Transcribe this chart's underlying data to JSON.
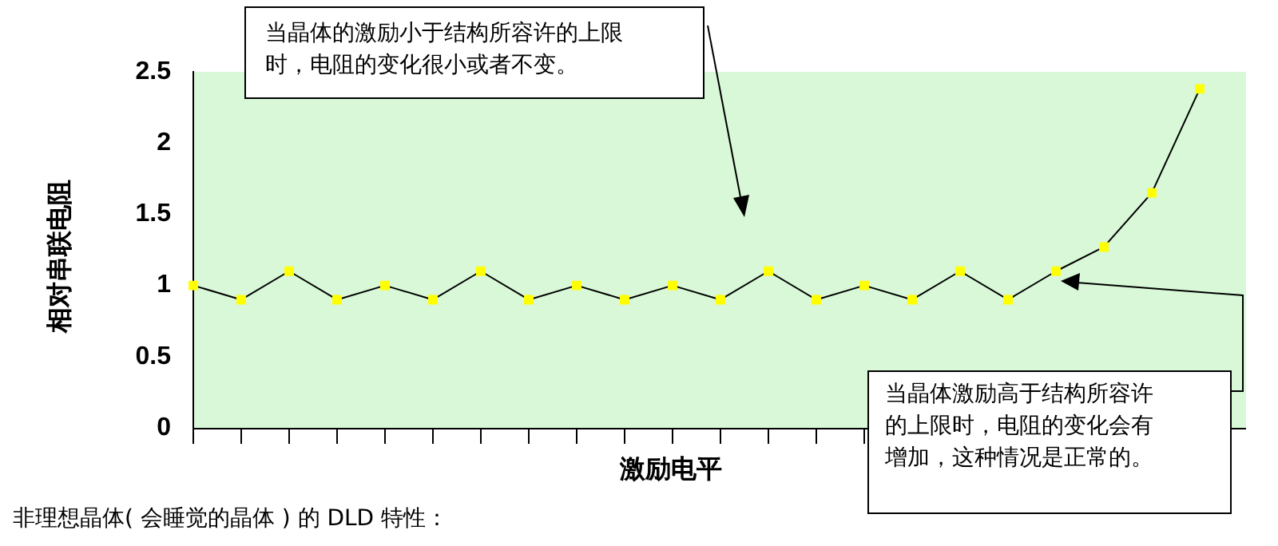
{
  "chart_data": {
    "type": "line",
    "xlabel": "激励电平",
    "ylabel": "相对串联电阻",
    "categories": [
      null,
      null,
      null,
      null,
      null,
      null,
      null,
      null,
      null,
      null,
      null,
      null,
      null,
      null,
      null,
      null,
      null,
      null,
      null,
      null,
      null,
      null
    ],
    "series": [
      {
        "color": "#000000",
        "values": [
          1,
          0.9,
          1.1,
          0.9,
          1,
          0.9,
          1.1,
          0.9,
          1,
          0.9,
          1,
          0.9,
          1.1,
          0.9,
          1,
          0.9,
          1.1,
          0.9,
          1.1,
          1.27,
          1.65,
          2.38
        ]
      }
    ],
    "ylim": [
      0,
      2.5
    ],
    "yticks": [
      0,
      0.5,
      1,
      1.5,
      2,
      2.5
    ],
    "grid": false,
    "legend": false,
    "marker": "square",
    "tick_labels": "y",
    "annotations": [
      "当晶体的激励小于结构所容许的上限时，电阻的变化很小或者不变。",
      "当晶体激励高于结构所容许的上限时，电阻的变化会有增加，这种情况是正常的。",
      "非理想晶体( 会睡觉的晶体 ) 的 DLD 特性："
    ]
  }
}
